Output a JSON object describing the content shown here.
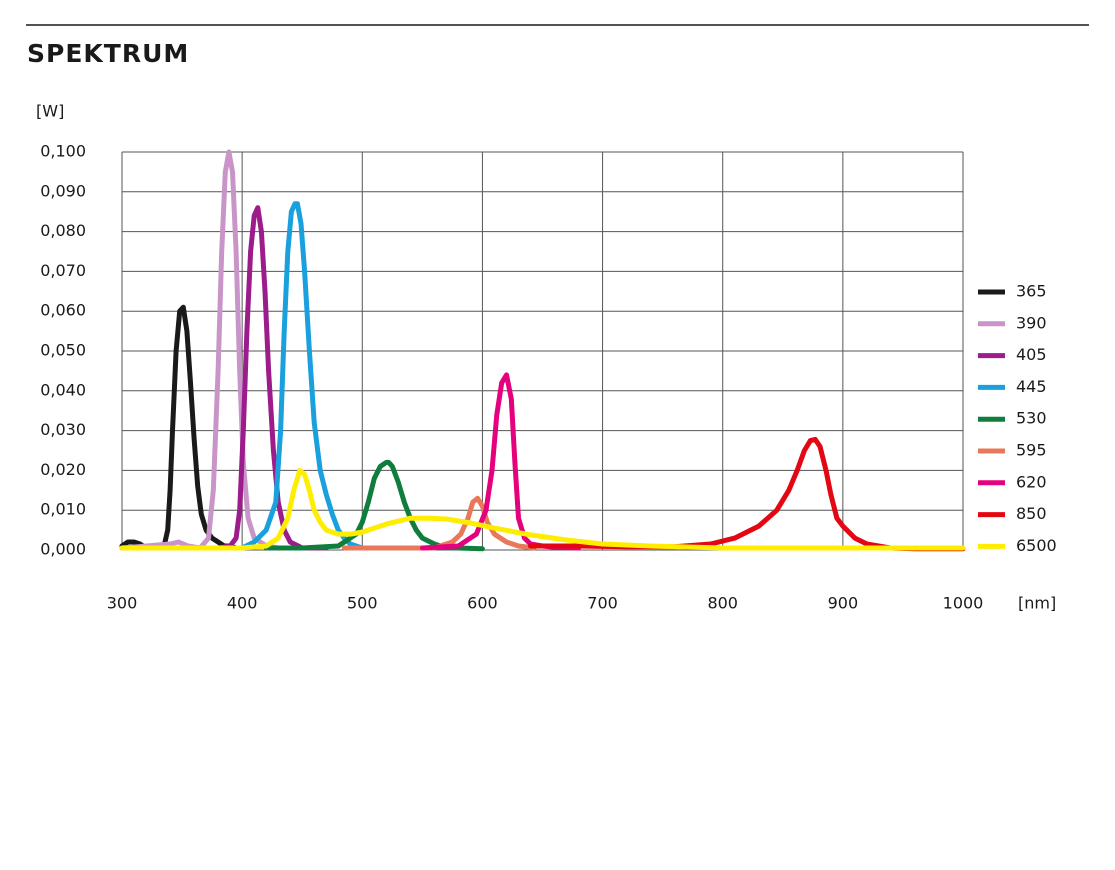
{
  "chart_data": {
    "type": "line",
    "title": "SPEKTRUM",
    "y_label": "[W]",
    "x_label": "[nm]",
    "xlim": [
      300,
      1000
    ],
    "xticks": [
      300,
      400,
      500,
      600,
      700,
      800,
      900,
      1000
    ],
    "ylim": [
      0,
      0.1
    ],
    "yticks": [
      {
        "value": 0,
        "label": "0,000"
      },
      {
        "value": 0.01,
        "label": "0,010"
      },
      {
        "value": 0.02,
        "label": "0,020"
      },
      {
        "value": 0.03,
        "label": "0,030"
      },
      {
        "value": 0.04,
        "label": "0,040"
      },
      {
        "value": 0.05,
        "label": "0,050"
      },
      {
        "value": 0.06,
        "label": "0,060"
      },
      {
        "value": 0.07,
        "label": "0,070"
      },
      {
        "value": 0.08,
        "label": "0,080"
      },
      {
        "value": 0.09,
        "label": "0,090"
      },
      {
        "value": 0.1,
        "label": "0,100"
      }
    ],
    "grid": true,
    "legend": "right",
    "series": [
      {
        "name": "365",
        "color": "#1a1a1a",
        "x": [
          300,
          305,
          310,
          315,
          320,
          325,
          330,
          335,
          338,
          340,
          342,
          345,
          348,
          351,
          354,
          357,
          360,
          363,
          366,
          370,
          375,
          380,
          385,
          390,
          395,
          400
        ],
        "values": [
          0.001,
          0.002,
          0.002,
          0.0015,
          0.0005,
          0.0005,
          0.0005,
          0.001,
          0.005,
          0.015,
          0.03,
          0.05,
          0.06,
          0.061,
          0.055,
          0.042,
          0.028,
          0.016,
          0.009,
          0.005,
          0.003,
          0.002,
          0.001,
          0.001,
          0.0005,
          0.0005
        ]
      },
      {
        "name": "390",
        "color": "#c994c7",
        "x": [
          300,
          340,
          347,
          355,
          365,
          372,
          376,
          380,
          383,
          386,
          389,
          392,
          395,
          398,
          401,
          405,
          410,
          415,
          420,
          430
        ],
        "values": [
          0.0005,
          0.0015,
          0.002,
          0.001,
          0.0005,
          0.003,
          0.015,
          0.045,
          0.075,
          0.095,
          0.1,
          0.095,
          0.075,
          0.045,
          0.022,
          0.008,
          0.003,
          0.002,
          0.001,
          0.0005
        ]
      },
      {
        "name": "405",
        "color": "#9b1c8a",
        "x": [
          300,
          380,
          390,
          395,
          398,
          401,
          404,
          407,
          410,
          413,
          416,
          419,
          422,
          426,
          430,
          435,
          440,
          450,
          470
        ],
        "values": [
          0.0005,
          0.0005,
          0.001,
          0.003,
          0.01,
          0.03,
          0.055,
          0.075,
          0.084,
          0.086,
          0.08,
          0.065,
          0.045,
          0.025,
          0.012,
          0.005,
          0.002,
          0.0005,
          0.0005
        ]
      },
      {
        "name": "445",
        "color": "#1aa0dc",
        "x": [
          300,
          400,
          410,
          420,
          428,
          432,
          435,
          438,
          441,
          444,
          446,
          449,
          452,
          456,
          460,
          465,
          470,
          475,
          480,
          485,
          490,
          500
        ],
        "values": [
          0.0005,
          0.0005,
          0.002,
          0.005,
          0.012,
          0.03,
          0.055,
          0.075,
          0.085,
          0.087,
          0.087,
          0.082,
          0.07,
          0.05,
          0.032,
          0.02,
          0.014,
          0.009,
          0.005,
          0.003,
          0.0015,
          0.0005
        ]
      },
      {
        "name": "530",
        "color": "#0f7e3c",
        "x": [
          420,
          450,
          480,
          495,
          500,
          505,
          510,
          515,
          520,
          522,
          525,
          530,
          535,
          540,
          545,
          550,
          560,
          570,
          580,
          600
        ],
        "values": [
          0.0005,
          0.0005,
          0.001,
          0.004,
          0.007,
          0.012,
          0.018,
          0.021,
          0.022,
          0.022,
          0.021,
          0.017,
          0.012,
          0.008,
          0.005,
          0.003,
          0.0015,
          0.0005,
          0.0005,
          0.0003
        ]
      },
      {
        "name": "595",
        "color": "#e9785a",
        "x": [
          485,
          520,
          560,
          575,
          582,
          588,
          592,
          596,
          600,
          604,
          610,
          620,
          630,
          643
        ],
        "values": [
          0.0005,
          0.0005,
          0.0005,
          0.002,
          0.004,
          0.008,
          0.012,
          0.013,
          0.011,
          0.007,
          0.004,
          0.002,
          0.001,
          0.0005
        ]
      },
      {
        "name": "620",
        "color": "#e5007e",
        "x": [
          550,
          580,
          595,
          603,
          608,
          612,
          616,
          620,
          624,
          627,
          630,
          635,
          640,
          650,
          660,
          680
        ],
        "values": [
          0.0005,
          0.001,
          0.004,
          0.01,
          0.02,
          0.034,
          0.042,
          0.044,
          0.038,
          0.022,
          0.008,
          0.003,
          0.0015,
          0.001,
          0.0007,
          0.0005
        ]
      },
      {
        "name": "850",
        "color": "#e30613",
        "x": [
          640,
          680,
          720,
          760,
          790,
          810,
          830,
          845,
          855,
          862,
          868,
          873,
          877,
          881,
          886,
          890,
          895,
          900,
          910,
          920,
          940,
          960,
          1000
        ],
        "values": [
          0.001,
          0.001,
          0.0008,
          0.0008,
          0.0015,
          0.003,
          0.006,
          0.01,
          0.015,
          0.02,
          0.025,
          0.0275,
          0.0278,
          0.026,
          0.02,
          0.014,
          0.008,
          0.006,
          0.003,
          0.0015,
          0.0005,
          0.0003,
          0.0003
        ]
      },
      {
        "name": "6500",
        "color": "#ffed00",
        "x": [
          300,
          400,
          420,
          430,
          438,
          443,
          448,
          452,
          456,
          460,
          465,
          470,
          480,
          490,
          500,
          520,
          540,
          555,
          570,
          590,
          610,
          640,
          670,
          700,
          740,
          800,
          900,
          1000
        ],
        "values": [
          0.0005,
          0.0005,
          0.001,
          0.003,
          0.008,
          0.015,
          0.02,
          0.019,
          0.015,
          0.01,
          0.007,
          0.005,
          0.004,
          0.004,
          0.0045,
          0.0065,
          0.008,
          0.008,
          0.0078,
          0.0068,
          0.0055,
          0.0038,
          0.0025,
          0.0015,
          0.001,
          0.0005,
          0.0005,
          0.0005
        ]
      }
    ]
  }
}
